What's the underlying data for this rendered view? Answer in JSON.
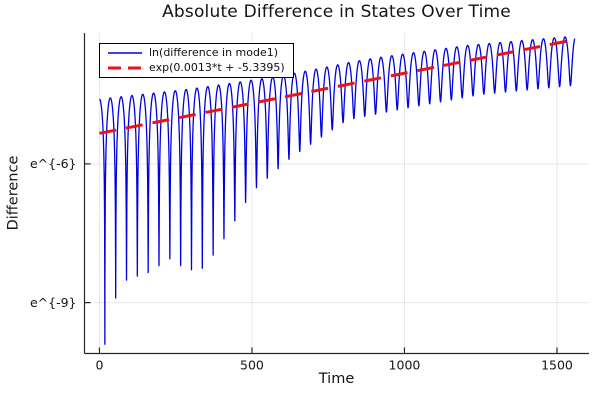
{
  "title": "Absolute Difference in States Over Time",
  "axes": {
    "xlabel": "Time",
    "ylabel": "Difference"
  },
  "legend": {
    "position": "top-left",
    "items": [
      {
        "label": "ln(difference in mode1)",
        "color": "#0000e0",
        "style": "solid"
      },
      {
        "label": "exp(0.0013*t + -5.3395)",
        "color": "#ee1212",
        "style": "dashed"
      }
    ]
  },
  "colors": {
    "background": "#ffffff",
    "series_blue": "#0000e0",
    "fit_red": "#ee1212",
    "spine": "#262626",
    "grid": "rgba(0,0,0,0.09)",
    "text": "#141414"
  },
  "chart_data": {
    "type": "line",
    "title": "Absolute Difference in States Over Time",
    "xlabel": "Time",
    "ylabel": "Difference",
    "grid": true,
    "legend_position": "top-left",
    "x_ticks": [
      {
        "value": 0,
        "label": "0"
      },
      {
        "value": 500,
        "label": "500"
      },
      {
        "value": 1000,
        "label": "1000"
      },
      {
        "value": 1500,
        "label": "1500"
      }
    ],
    "y_ticks": [
      {
        "value": -6,
        "label": "e^{-6}"
      },
      {
        "value": -9,
        "label": "e^{-9}"
      }
    ],
    "xlim": [
      -49,
      1605
    ],
    "ylim_ln": [
      -10.1,
      -3.17
    ],
    "y_scale_note": "y axis is log scale; values stored as natural-log of the plotted quantity",
    "series": [
      {
        "name": "ln(difference in mode1)",
        "color": "#0000e0",
        "style": "solid",
        "model": "oscillating_abs_difference",
        "t_range": [
          0,
          1558
        ],
        "sample_step": 1,
        "arc_period": 35.5,
        "peak_envelope_ln": [
          [
            0,
            -4.6
          ],
          [
            300,
            -4.38
          ],
          [
            600,
            -4.1
          ],
          [
            900,
            -3.76
          ],
          [
            1200,
            -3.5
          ],
          [
            1558,
            -3.3
          ]
        ],
        "dip_depth_ln": [
          [
            0,
            -9.9
          ],
          [
            19,
            -9.9
          ],
          [
            55,
            -8.85
          ],
          [
            90,
            -8.5
          ],
          [
            160,
            -8.35
          ],
          [
            230,
            -8.05
          ],
          [
            290,
            -8.3
          ],
          [
            345,
            -8.25
          ],
          [
            420,
            -7.5
          ],
          [
            500,
            -6.6
          ],
          [
            630,
            -5.85
          ],
          [
            812,
            -5.05
          ],
          [
            1000,
            -4.8
          ],
          [
            1250,
            -4.5
          ],
          [
            1558,
            -4.3
          ]
        ]
      },
      {
        "name": "exp(0.0013*t + -5.3395)",
        "color": "#ee1212",
        "style": "dashed",
        "model": "exp_fit",
        "slope": 0.0013,
        "intercept": -5.3395,
        "t_range": [
          0,
          1552
        ]
      }
    ]
  }
}
